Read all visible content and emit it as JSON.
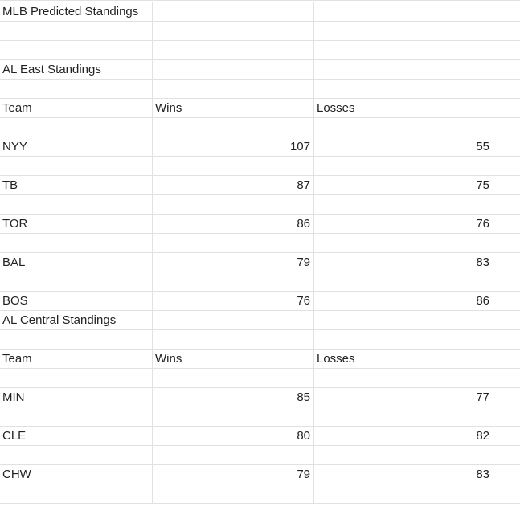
{
  "sheet": {
    "title": "MLB Predicted Standings",
    "divisions": [
      {
        "heading": "AL East Standings",
        "headers": {
          "team": "Team",
          "wins": "Wins",
          "losses": "Losses"
        },
        "teams": [
          {
            "team": "NYY",
            "wins": "107",
            "losses": "55"
          },
          {
            "team": "TB",
            "wins": "87",
            "losses": "75"
          },
          {
            "team": "TOR",
            "wins": "86",
            "losses": "76"
          },
          {
            "team": "BAL",
            "wins": "79",
            "losses": "83"
          },
          {
            "team": "BOS",
            "wins": "76",
            "losses": "86"
          }
        ]
      },
      {
        "heading": "AL Central Standings",
        "headers": {
          "team": "Team",
          "wins": "Wins",
          "losses": "Losses"
        },
        "teams": [
          {
            "team": "MIN",
            "wins": "85",
            "losses": "77"
          },
          {
            "team": "CLE",
            "wins": "80",
            "losses": "82"
          },
          {
            "team": "CHW",
            "wins": "79",
            "losses": "83"
          }
        ]
      }
    ]
  }
}
